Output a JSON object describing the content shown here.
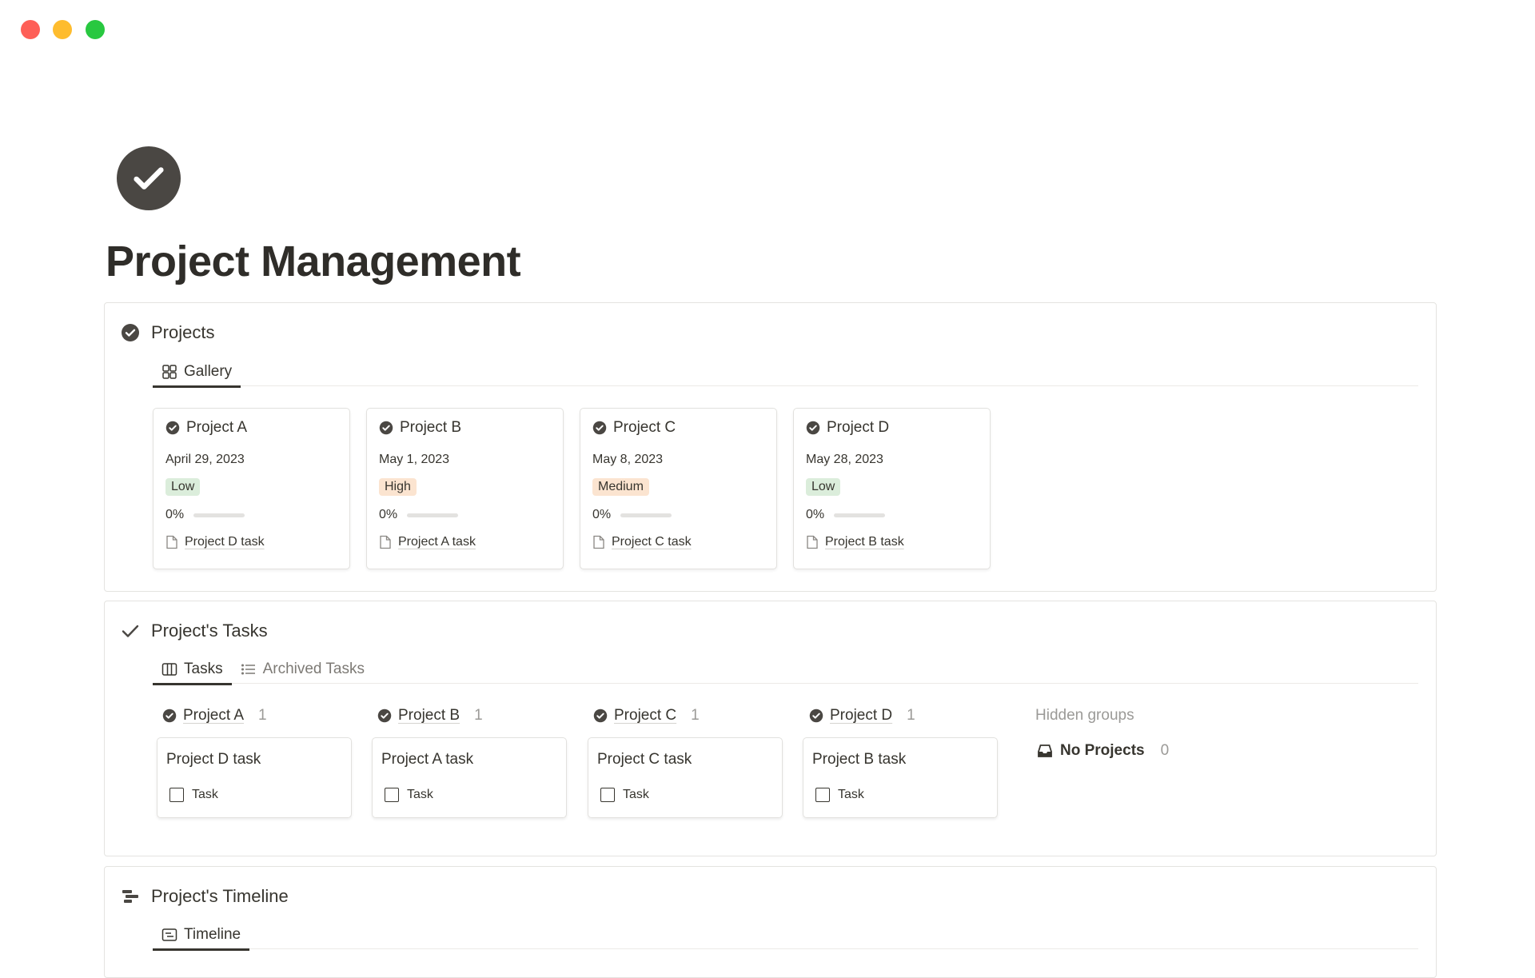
{
  "window": {
    "controls": [
      "close",
      "minimize",
      "maximize"
    ],
    "colors": {
      "close": "#fe5f57",
      "minimize": "#febc2e",
      "maximize": "#28c840"
    }
  },
  "page": {
    "icon": "check-circle-icon",
    "title": "Project Management"
  },
  "projects": {
    "title": "Projects",
    "tabs": [
      {
        "label": "Gallery",
        "icon": "gallery-icon",
        "active": true
      }
    ],
    "cards": [
      {
        "name": "Project A",
        "date": "April 29, 2023",
        "priority": "Low",
        "priority_color": "#dbeddb",
        "progress": "0%",
        "progress_value": 0,
        "task": "Project D task"
      },
      {
        "name": "Project B",
        "date": "May 1, 2023",
        "priority": "High",
        "priority_color": "#fbe4d0",
        "progress": "0%",
        "progress_value": 0,
        "task": "Project A task"
      },
      {
        "name": "Project C",
        "date": "May 8, 2023",
        "priority": "Medium",
        "priority_color": "#fbe4d0",
        "progress": "0%",
        "progress_value": 0,
        "task": "Project C task"
      },
      {
        "name": "Project D",
        "date": "May 28, 2023",
        "priority": "Low",
        "priority_color": "#dbeddb",
        "progress": "0%",
        "progress_value": 0,
        "task": "Project B task"
      }
    ]
  },
  "tasks": {
    "title": "Project's Tasks",
    "tabs": [
      {
        "label": "Tasks",
        "icon": "board-icon",
        "active": true
      },
      {
        "label": "Archived Tasks",
        "icon": "list-icon",
        "active": false
      }
    ],
    "groups": [
      {
        "name": "Project A",
        "count": "1",
        "card": "Project D task",
        "type": "Task"
      },
      {
        "name": "Project B",
        "count": "1",
        "card": "Project A task",
        "type": "Task"
      },
      {
        "name": "Project C",
        "count": "1",
        "card": "Project C task",
        "type": "Task"
      },
      {
        "name": "Project D",
        "count": "1",
        "card": "Project B task",
        "type": "Task"
      }
    ],
    "hidden_groups_label": "Hidden groups",
    "hidden": {
      "name": "No Projects",
      "count": "0"
    }
  },
  "timeline": {
    "title": "Project's Timeline",
    "tabs": [
      {
        "label": "Timeline",
        "icon": "timeline-icon",
        "active": true
      }
    ]
  }
}
